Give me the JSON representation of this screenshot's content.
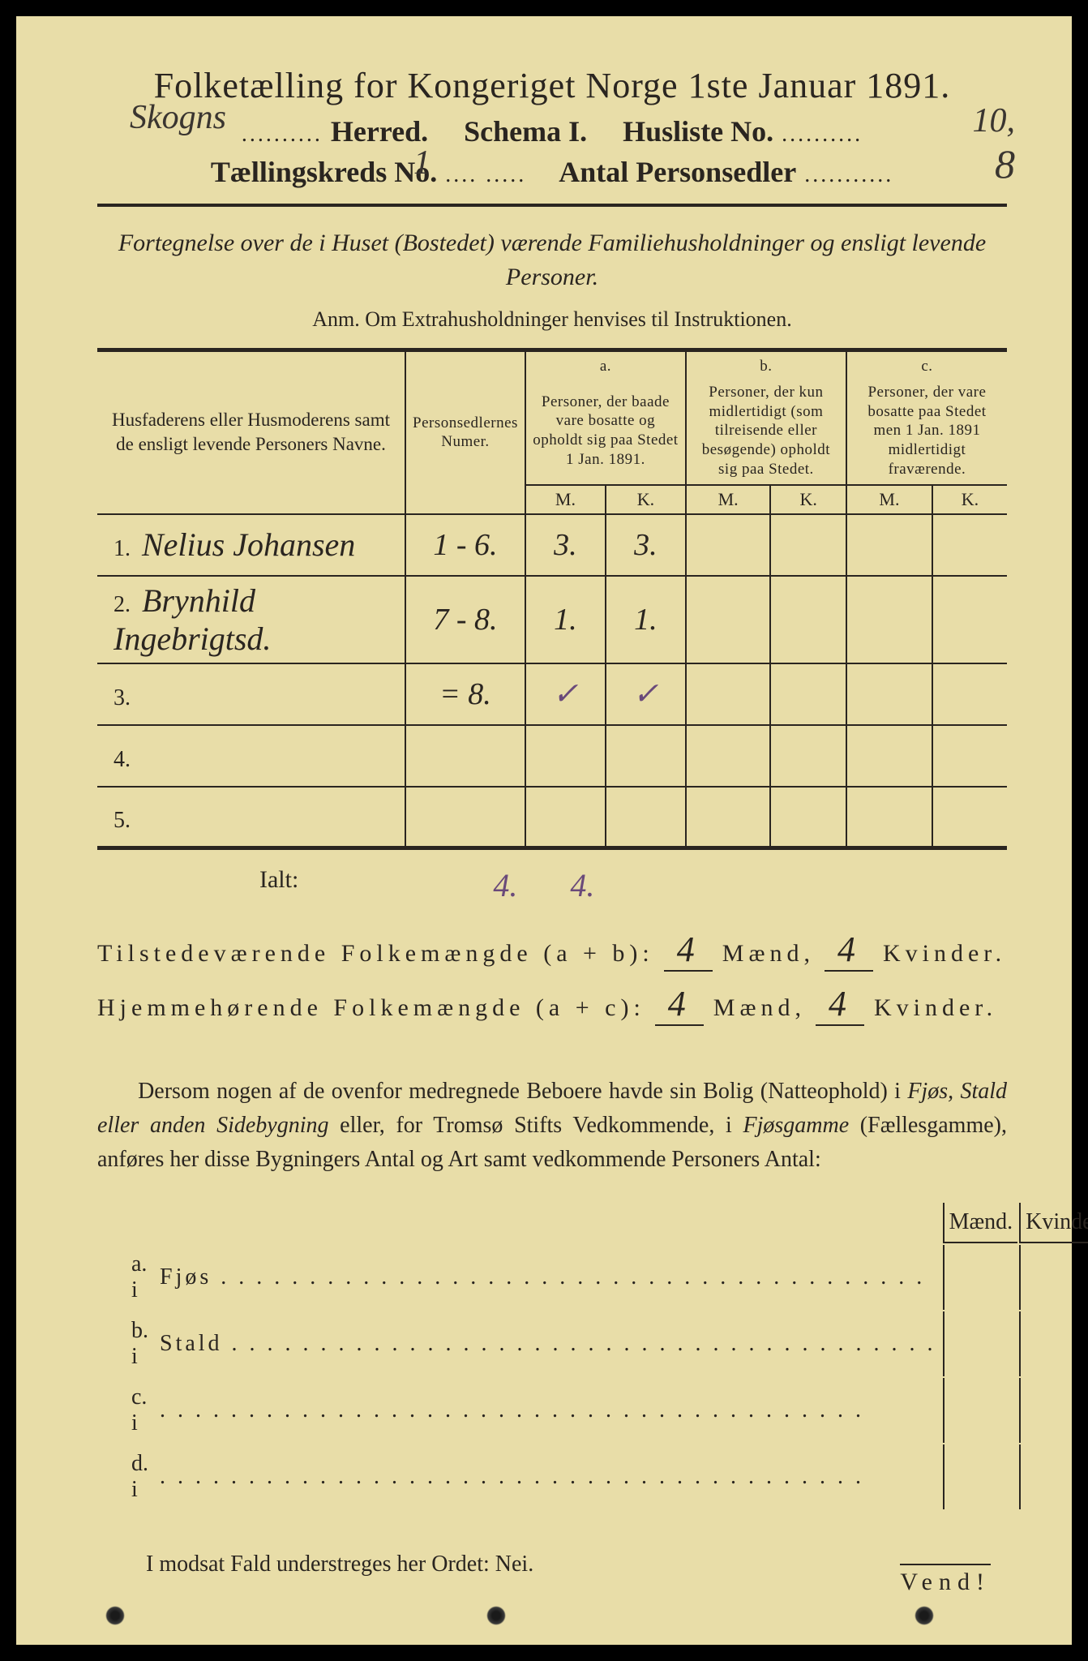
{
  "title": "Folketælling for Kongeriget Norge 1ste Januar 1891.",
  "header": {
    "herred_hw": "Skogns",
    "herred_label": "Herred.",
    "schema_label": "Schema I.",
    "husliste_label": "Husliste No.",
    "husliste_hw": "10,",
    "kreds_label": "Tællingskreds No.",
    "kreds_hw": "1",
    "antal_label": "Antal Personsedler",
    "antal_hw": "8"
  },
  "subtitle": "Fortegnelse over de i Huset (Bostedet) værende Familiehusholdninger og ensligt levende Personer.",
  "anm": "Anm.  Om Extrahusholdninger henvises til Instruktionen.",
  "table": {
    "col1": "Husfaderens eller Husmoderens samt de ensligt levende Personers Navne.",
    "col2": "Personsedlernes Numer.",
    "col_a_head": "a.",
    "col_a": "Personer, der baade vare bosatte og opholdt sig paa Stedet 1 Jan. 1891.",
    "col_b_head": "b.",
    "col_b": "Personer, der kun midlertidigt (som tilreisende eller besøgende) opholdt sig paa Stedet.",
    "col_c_head": "c.",
    "col_c": "Personer, der vare bosatte paa Stedet men 1 Jan. 1891 midlertidigt fraværende.",
    "m": "M.",
    "k": "K.",
    "rows": [
      {
        "n": "1.",
        "name": "Nelius Johansen",
        "numer": "1 - 6.",
        "am": "3.",
        "ak": "3.",
        "bm": "",
        "bk": "",
        "cm": "",
        "ck": ""
      },
      {
        "n": "2.",
        "name": "Brynhild Ingebrigtsd.",
        "numer": "7 - 8.",
        "am": "1.",
        "ak": "1.",
        "bm": "",
        "bk": "",
        "cm": "",
        "ck": ""
      },
      {
        "n": "3.",
        "name": "",
        "numer": "= 8.",
        "am": "✓",
        "ak": "✓",
        "bm": "",
        "bk": "",
        "cm": "",
        "ck": ""
      },
      {
        "n": "4.",
        "name": "",
        "numer": "",
        "am": "",
        "ak": "",
        "bm": "",
        "bk": "",
        "cm": "",
        "ck": ""
      },
      {
        "n": "5.",
        "name": "",
        "numer": "",
        "am": "",
        "ak": "",
        "bm": "",
        "bk": "",
        "cm": "",
        "ck": ""
      }
    ]
  },
  "ialt": {
    "label": "Ialt:",
    "m": "4.",
    "k": "4."
  },
  "sums": {
    "ab_label": "Tilstedeværende Folkemængde (a + b):",
    "ab_m": "4",
    "ab_k": "4",
    "ac_label": "Hjemmehørende Folkemængde (a + c):",
    "ac_m": "4",
    "ac_k": "4",
    "maend": "Mænd,",
    "kvinder": "Kvinder."
  },
  "bodytext": "Dersom nogen af de ovenfor medregnede Beboere havde sin Bolig (Natteophold) i Fjøs, Stald eller anden Sidebygning eller, for Tromsø Stifts Vedkommende, i Fjøsgamme (Fællesgamme), anføres her disse Bygningers Antal og Art samt vedkommende Personers Antal:",
  "bygning": {
    "maend_h": "Mænd.",
    "kvinder_h": "Kvinder.",
    "rows": [
      {
        "l": "a.  i",
        "t": "Fjøs"
      },
      {
        "l": "b.  i",
        "t": "Stald"
      },
      {
        "l": "c.  i",
        "t": ""
      },
      {
        "l": "d.  i",
        "t": ""
      }
    ]
  },
  "footer": "I modsat Fald understreges her Ordet: Nei.",
  "vend": "Vend!"
}
